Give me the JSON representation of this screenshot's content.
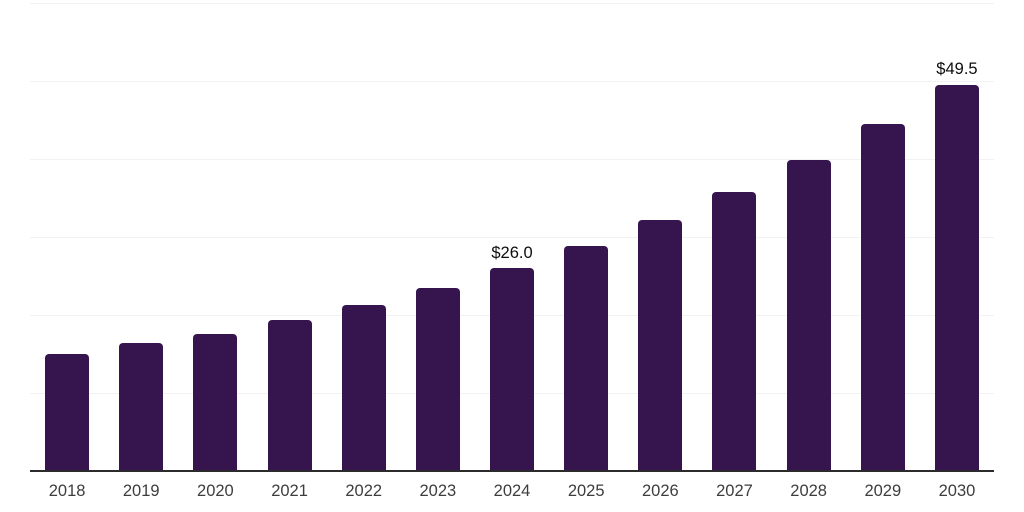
{
  "chart_data": {
    "type": "bar",
    "categories": [
      "2018",
      "2019",
      "2020",
      "2021",
      "2022",
      "2023",
      "2024",
      "2025",
      "2026",
      "2027",
      "2028",
      "2029",
      "2030"
    ],
    "values": [
      15.0,
      16.4,
      17.6,
      19.3,
      21.3,
      23.4,
      26.0,
      28.9,
      32.2,
      35.8,
      39.9,
      44.5,
      49.5
    ],
    "data_labels": [
      null,
      null,
      null,
      null,
      null,
      null,
      "$26.0",
      null,
      null,
      null,
      null,
      null,
      "$49.5"
    ],
    "ylim": [
      0,
      60
    ],
    "gridline_step": 10,
    "grid": true,
    "legend": false
  },
  "style": {
    "bar_color": "#36154e",
    "grid_color": "#f2f2f2",
    "axis_color": "#2b2b2b",
    "year_label_color": "#3d3d3d",
    "value_label_color": "#0d0d0d"
  }
}
